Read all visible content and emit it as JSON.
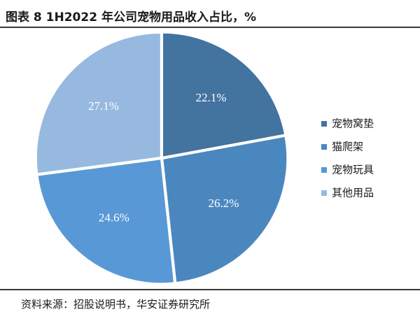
{
  "title": "图表 8 1H2022 年公司宠物用品收入占比，%",
  "source": "资料来源：招股说明书，华安证券研究所",
  "chart_data": {
    "type": "pie",
    "title": "图表 8 1H2022 年公司宠物用品收入占比，%",
    "legend_position": "right",
    "slices": [
      {
        "name": "宠物窝垫",
        "value": 22.1,
        "label": "22.1%",
        "color": "#43739f"
      },
      {
        "name": "猫爬架",
        "value": 26.2,
        "label": "26.2%",
        "color": "#4b87bf"
      },
      {
        "name": "宠物玩具",
        "value": 24.6,
        "label": "24.6%",
        "color": "#5898d6"
      },
      {
        "name": "其他用品",
        "value": 27.1,
        "label": "27.1%",
        "color": "#97b9e0"
      }
    ]
  }
}
